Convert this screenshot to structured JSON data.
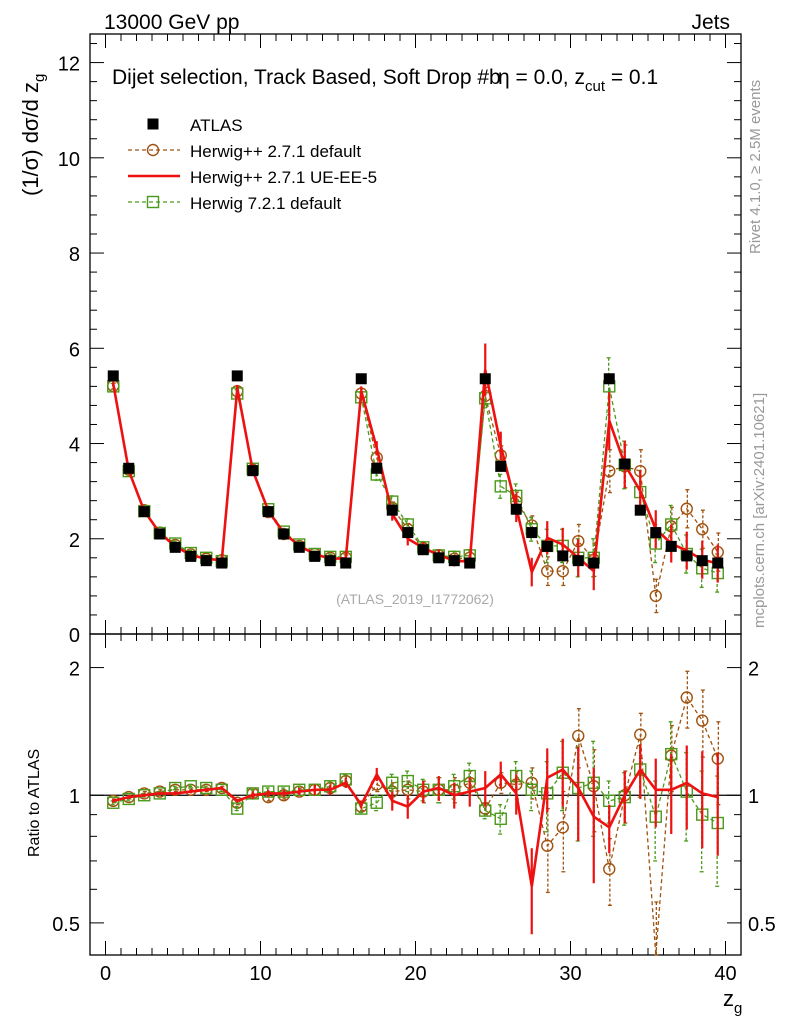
{
  "header": {
    "left": "13000 GeV pp",
    "right": "Jets"
  },
  "side_labels": {
    "rivet": "Rivet 4.1.0, ≥ 2.5M events",
    "mcplots": "mcplots.cern.ch [arXiv:2401.10621]"
  },
  "colors": {
    "atlas": "#000000",
    "herwig_default": "#a0520f",
    "herwig_ue": "#ee1111",
    "herwig7": "#4a9a1a"
  },
  "chart_data": [
    {
      "type": "scatter",
      "panel": "main",
      "title": "Dijet selection, Track Based, Soft Drop #bη = 0.0, z_cut = 0.1",
      "title_parts": [
        "Dijet selection, Track Based, Soft Drop #b",
        "η = 0.0, z",
        "cut",
        " = 0.1"
      ],
      "ylabel_parts": [
        "(1/σ) dσ/d z",
        "g"
      ],
      "watermark": "(ATLAS_2019_I1772062)",
      "xlim": [
        -1,
        41
      ],
      "ylim": [
        0,
        12.6
      ],
      "xticks": [
        0,
        10,
        20,
        30,
        40
      ],
      "yticks": [
        0,
        2,
        4,
        6,
        8,
        10,
        12
      ],
      "legend_position": "top-left",
      "x": [
        0.5,
        1.5,
        2.5,
        3.5,
        4.5,
        5.5,
        6.5,
        7.5,
        8.5,
        9.5,
        10.5,
        11.5,
        12.5,
        13.5,
        14.5,
        15.5,
        16.5,
        17.5,
        18.5,
        19.5,
        20.5,
        21.5,
        22.5,
        23.5,
        24.5,
        25.5,
        26.5,
        27.5,
        28.5,
        29.5,
        30.5,
        31.5,
        32.5,
        33.5,
        34.5,
        35.5,
        36.5,
        37.5,
        38.5,
        39.5
      ],
      "series": [
        {
          "name": "ATLAS",
          "style": "data",
          "values": [
            5.42,
            3.48,
            2.57,
            2.1,
            1.82,
            1.63,
            1.54,
            1.49,
            5.42,
            3.43,
            2.57,
            2.1,
            1.82,
            1.63,
            1.54,
            1.49,
            5.36,
            3.48,
            2.6,
            2.13,
            1.77,
            1.6,
            1.54,
            1.49,
            5.36,
            3.52,
            2.62,
            2.13,
            1.84,
            1.64,
            1.54,
            1.49,
            5.36,
            3.57,
            2.6,
            2.13,
            1.84,
            1.64,
            1.54,
            1.49
          ]
        },
        {
          "name": "Herwig++ 2.7.1 default",
          "style": "dashed-circle",
          "values": [
            5.21,
            3.45,
            2.6,
            2.13,
            1.87,
            1.67,
            1.58,
            1.55,
            5.1,
            3.45,
            2.56,
            2.1,
            1.85,
            1.68,
            1.6,
            1.6,
            5.05,
            3.7,
            2.65,
            2.2,
            1.8,
            1.65,
            1.58,
            1.6,
            5.0,
            3.75,
            2.78,
            2.28,
            1.32,
            1.32,
            1.95,
            1.56,
            3.42,
            3.52,
            3.42,
            0.8,
            2.26,
            2.63,
            2.2,
            1.72
          ],
          "errors": [
            0.06,
            0.06,
            0.05,
            0.05,
            0.05,
            0.05,
            0.05,
            0.05,
            0.08,
            0.07,
            0.06,
            0.06,
            0.06,
            0.06,
            0.06,
            0.06,
            0.1,
            0.12,
            0.12,
            0.12,
            0.12,
            0.12,
            0.12,
            0.12,
            0.18,
            0.2,
            0.2,
            0.2,
            0.3,
            0.3,
            0.35,
            0.35,
            0.45,
            0.45,
            0.45,
            0.35,
            0.4,
            0.4,
            0.4,
            0.4
          ]
        },
        {
          "name": "Herwig++ 2.7.1 UE-EE-5",
          "style": "solid",
          "values": [
            5.25,
            3.43,
            2.58,
            2.12,
            1.84,
            1.66,
            1.58,
            1.55,
            5.16,
            3.43,
            2.59,
            2.12,
            1.85,
            1.68,
            1.58,
            1.59,
            5.1,
            3.9,
            2.52,
            2.0,
            1.81,
            1.66,
            1.54,
            1.52,
            5.55,
            3.95,
            2.65,
            1.3,
            2.02,
            1.88,
            1.6,
            1.32,
            4.48,
            3.56,
            3.0,
            2.2,
            1.9,
            1.75,
            1.56,
            1.48
          ],
          "errors": [
            0.05,
            0.05,
            0.05,
            0.05,
            0.05,
            0.05,
            0.05,
            0.05,
            0.07,
            0.06,
            0.06,
            0.06,
            0.06,
            0.06,
            0.06,
            0.06,
            0.1,
            0.15,
            0.14,
            0.14,
            0.12,
            0.12,
            0.12,
            0.12,
            0.55,
            0.3,
            0.3,
            0.3,
            0.35,
            0.35,
            0.4,
            0.4,
            0.6,
            0.5,
            0.45,
            0.4,
            0.4,
            0.4,
            0.4,
            0.4
          ]
        },
        {
          "name": "Herwig 7.2.1 default",
          "style": "dashed-square",
          "values": [
            5.2,
            3.42,
            2.58,
            2.12,
            1.9,
            1.7,
            1.6,
            1.53,
            5.05,
            3.47,
            2.62,
            2.15,
            1.88,
            1.68,
            1.62,
            1.62,
            4.97,
            3.35,
            2.78,
            2.3,
            1.82,
            1.65,
            1.62,
            1.65,
            4.95,
            3.1,
            2.9,
            2.2,
            1.85,
            1.85,
            1.6,
            1.6,
            5.2,
            3.55,
            2.98,
            1.9,
            2.3,
            1.68,
            1.38,
            1.28
          ],
          "errors": [
            0.06,
            0.06,
            0.05,
            0.05,
            0.05,
            0.05,
            0.05,
            0.05,
            0.08,
            0.07,
            0.06,
            0.06,
            0.06,
            0.06,
            0.06,
            0.06,
            0.1,
            0.12,
            0.12,
            0.12,
            0.12,
            0.12,
            0.12,
            0.12,
            0.2,
            0.25,
            0.25,
            0.25,
            0.35,
            0.35,
            0.4,
            0.4,
            0.6,
            0.5,
            0.45,
            0.4,
            0.4,
            0.4,
            0.4,
            0.4
          ]
        }
      ]
    },
    {
      "type": "line",
      "panel": "ratio",
      "ylabel": "Ratio to ATLAS",
      "xlabel_parts": [
        "z",
        "g"
      ],
      "scale": "log",
      "ylim": [
        0.42,
        2.4
      ],
      "xlim": [
        -1,
        41
      ],
      "xticks": [
        0,
        10,
        20,
        30,
        40
      ],
      "yticks": [
        0.5,
        1,
        2
      ],
      "reference": 1,
      "x": [
        0.5,
        1.5,
        2.5,
        3.5,
        4.5,
        5.5,
        6.5,
        7.5,
        8.5,
        9.5,
        10.5,
        11.5,
        12.5,
        13.5,
        14.5,
        15.5,
        16.5,
        17.5,
        18.5,
        19.5,
        20.5,
        21.5,
        22.5,
        23.5,
        24.5,
        25.5,
        26.5,
        27.5,
        28.5,
        29.5,
        30.5,
        31.5,
        32.5,
        33.5,
        34.5,
        35.5,
        36.5,
        37.5,
        38.5,
        39.5
      ],
      "series": [
        {
          "name": "Herwig++ 2.7.1 default",
          "style": "dashed-circle",
          "values": [
            0.97,
            0.99,
            1.01,
            1.02,
            1.03,
            1.03,
            1.03,
            1.04,
            0.96,
            1.01,
            0.99,
            1.0,
            1.02,
            1.03,
            1.04,
            1.08,
            0.94,
            1.06,
            1.02,
            1.03,
            1.02,
            1.03,
            1.03,
            1.07,
            0.93,
            1.07,
            1.06,
            1.07,
            0.76,
            0.84,
            1.38,
            1.05,
            0.67,
            1.0,
            1.39,
            0.38,
            1.24,
            1.7,
            1.5,
            1.22
          ],
          "errors": [
            0.01,
            0.01,
            0.01,
            0.01,
            0.01,
            0.01,
            0.01,
            0.01,
            0.01,
            0.02,
            0.02,
            0.02,
            0.02,
            0.03,
            0.03,
            0.03,
            0.02,
            0.04,
            0.05,
            0.05,
            0.06,
            0.07,
            0.07,
            0.07,
            0.03,
            0.06,
            0.08,
            0.09,
            0.17,
            0.18,
            0.22,
            0.23,
            0.12,
            0.14,
            0.17,
            0.18,
            0.22,
            0.26,
            0.27,
            0.27
          ]
        },
        {
          "name": "Herwig++ 2.7.1 UE-EE-5",
          "style": "solid",
          "values": [
            0.97,
            0.99,
            1.0,
            1.01,
            1.01,
            1.02,
            1.03,
            1.04,
            0.97,
            1.0,
            1.01,
            1.01,
            1.02,
            1.03,
            1.03,
            1.07,
            0.95,
            1.12,
            0.97,
            0.94,
            1.02,
            1.04,
            1.0,
            1.02,
            1.04,
            1.12,
            1.01,
            0.61,
            1.1,
            1.15,
            1.04,
            0.89,
            0.84,
            1.0,
            1.15,
            1.03,
            1.03,
            1.07,
            1.01,
            0.99
          ],
          "errors": [
            0.01,
            0.01,
            0.01,
            0.01,
            0.01,
            0.01,
            0.01,
            0.01,
            0.01,
            0.02,
            0.02,
            0.02,
            0.02,
            0.03,
            0.03,
            0.03,
            0.02,
            0.04,
            0.05,
            0.06,
            0.06,
            0.07,
            0.07,
            0.08,
            0.1,
            0.08,
            0.11,
            0.14,
            0.19,
            0.21,
            0.26,
            0.27,
            0.11,
            0.14,
            0.17,
            0.19,
            0.22,
            0.24,
            0.26,
            0.27
          ]
        },
        {
          "name": "Herwig 7.2.1 default",
          "style": "dashed-square",
          "values": [
            0.96,
            0.98,
            1.0,
            1.01,
            1.04,
            1.05,
            1.04,
            1.03,
            0.93,
            1.01,
            1.02,
            1.02,
            1.03,
            1.03,
            1.05,
            1.09,
            0.93,
            0.96,
            1.07,
            1.08,
            1.03,
            1.03,
            1.05,
            1.11,
            0.92,
            0.88,
            1.11,
            1.03,
            1.01,
            1.13,
            1.04,
            1.07,
            0.97,
            0.99,
            1.15,
            0.89,
            1.25,
            1.02,
            0.9,
            0.86
          ],
          "errors": [
            0.01,
            0.01,
            0.01,
            0.01,
            0.01,
            0.01,
            0.01,
            0.01,
            0.01,
            0.02,
            0.02,
            0.02,
            0.02,
            0.03,
            0.03,
            0.03,
            0.02,
            0.04,
            0.05,
            0.06,
            0.06,
            0.07,
            0.07,
            0.08,
            0.04,
            0.07,
            0.09,
            0.11,
            0.19,
            0.21,
            0.26,
            0.27,
            0.11,
            0.14,
            0.16,
            0.19,
            0.24,
            0.24,
            0.24,
            0.25
          ]
        }
      ]
    }
  ]
}
